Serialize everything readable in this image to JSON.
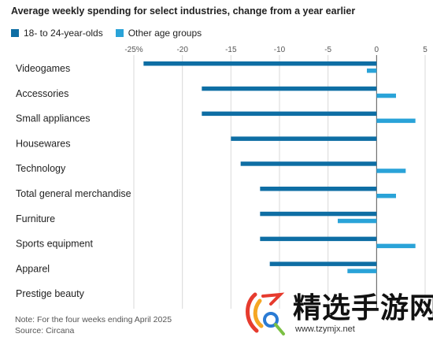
{
  "chart_data": {
    "type": "bar",
    "orientation": "horizontal",
    "title": "Average weekly spending for select industries, change from a year earlier",
    "categories": [
      "Videogames",
      "Accessories",
      "Small appliances",
      "Housewares",
      "Technology",
      "Total general merchandise",
      "Furniture",
      "Sports equipment",
      "Apparel",
      "Prestige beauty"
    ],
    "series": [
      {
        "name": "18- to 24-year-olds",
        "color": "#0e6ea4",
        "values": [
          -24,
          -18,
          -18,
          -15,
          -14,
          -12,
          -12,
          -12,
          -11,
          null
        ]
      },
      {
        "name": "Other age groups",
        "color": "#2aa3d8",
        "values": [
          -1,
          2,
          4,
          null,
          3,
          2,
          -4,
          4,
          -3,
          null
        ]
      }
    ],
    "xlim": [
      -25,
      5
    ],
    "xticks": [
      -25,
      -20,
      -15,
      -10,
      -5,
      0,
      5
    ],
    "xtick_labels": [
      "-25%",
      "-20",
      "-15",
      "-10",
      "-5",
      "0",
      "5"
    ],
    "legend": "top-left",
    "grid": "vertical"
  },
  "note": "Note: For the four weeks ending April 2025",
  "source": "Source: Circana",
  "watermark": {
    "text": "精选手游网",
    "url": "www.tzymjx.net"
  }
}
